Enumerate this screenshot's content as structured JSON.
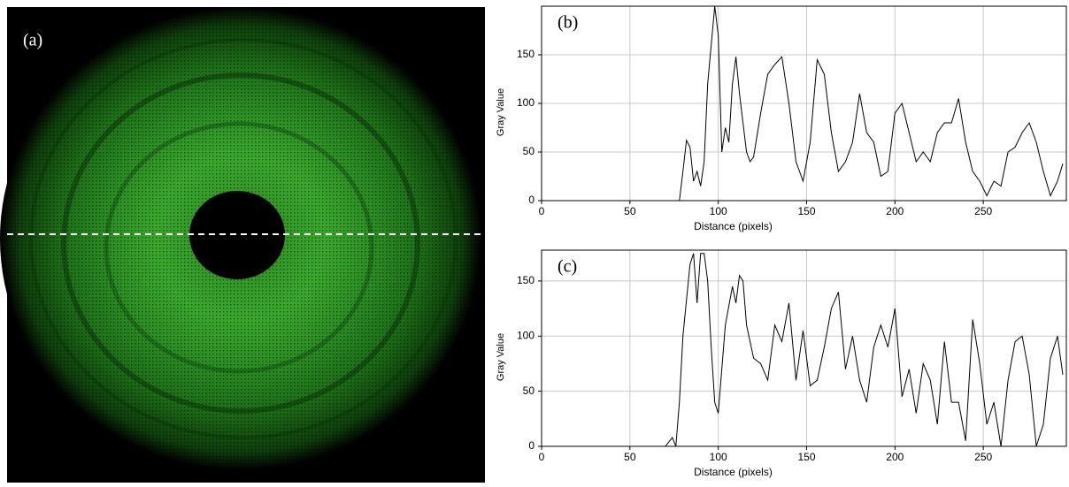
{
  "image_panel": {
    "label": "(a)"
  },
  "chart_data": [
    {
      "type": "line",
      "title": "(b)",
      "xlabel": "Distance (pixels)",
      "ylabel": "Gray Value",
      "xlim": [
        0,
        297
      ],
      "ylim": [
        0,
        200
      ],
      "xticks": [
        0,
        50,
        100,
        150,
        200,
        250
      ],
      "yticks": [
        0,
        50,
        100,
        150
      ],
      "grid": true,
      "color": "#000000",
      "x": [
        0,
        78,
        80,
        82,
        84,
        86,
        88,
        90,
        92,
        94,
        96,
        98,
        100,
        102,
        104,
        106,
        108,
        110,
        112,
        114,
        116,
        118,
        120,
        124,
        128,
        132,
        136,
        140,
        144,
        148,
        152,
        156,
        160,
        164,
        168,
        172,
        176,
        180,
        184,
        188,
        192,
        196,
        200,
        204,
        208,
        212,
        216,
        220,
        224,
        228,
        232,
        236,
        240,
        244,
        248,
        252,
        256,
        260,
        264,
        268,
        272,
        276,
        280,
        284,
        288,
        292,
        295
      ],
      "values": [
        0,
        0,
        30,
        62,
        55,
        20,
        30,
        15,
        40,
        120,
        160,
        200,
        170,
        50,
        75,
        60,
        120,
        148,
        110,
        80,
        50,
        40,
        45,
        90,
        130,
        140,
        148,
        100,
        40,
        20,
        60,
        145,
        130,
        70,
        30,
        40,
        60,
        110,
        70,
        60,
        25,
        30,
        90,
        100,
        70,
        40,
        50,
        40,
        70,
        80,
        80,
        105,
        60,
        30,
        20,
        5,
        20,
        15,
        50,
        55,
        70,
        80,
        60,
        30,
        5,
        20,
        38
      ]
    },
    {
      "type": "line",
      "title": "(c)",
      "xlabel": "Distance (pixels)",
      "ylabel": "Gray Value",
      "xlim": [
        0,
        297
      ],
      "ylim": [
        0,
        178
      ],
      "xticks": [
        0,
        50,
        100,
        150,
        200,
        250
      ],
      "yticks": [
        0,
        50,
        100,
        150
      ],
      "grid": true,
      "color": "#000000",
      "x": [
        0,
        70,
        74,
        76,
        78,
        80,
        84,
        86,
        88,
        90,
        92,
        94,
        96,
        98,
        100,
        104,
        108,
        110,
        112,
        114,
        116,
        118,
        120,
        124,
        128,
        132,
        136,
        140,
        144,
        148,
        152,
        156,
        160,
        164,
        168,
        172,
        176,
        180,
        184,
        188,
        192,
        196,
        200,
        204,
        208,
        212,
        216,
        220,
        224,
        228,
        232,
        236,
        240,
        244,
        248,
        252,
        256,
        260,
        264,
        268,
        272,
        276,
        280,
        284,
        288,
        292,
        295
      ],
      "values": [
        0,
        0,
        8,
        0,
        40,
        100,
        165,
        175,
        130,
        175,
        175,
        150,
        90,
        40,
        30,
        110,
        145,
        130,
        155,
        150,
        110,
        95,
        80,
        75,
        60,
        110,
        95,
        130,
        60,
        105,
        55,
        60,
        90,
        125,
        140,
        70,
        100,
        60,
        40,
        90,
        110,
        90,
        125,
        45,
        70,
        30,
        75,
        60,
        20,
        95,
        40,
        40,
        5,
        115,
        75,
        20,
        40,
        0,
        60,
        95,
        100,
        65,
        0,
        20,
        80,
        100,
        65
      ]
    }
  ]
}
